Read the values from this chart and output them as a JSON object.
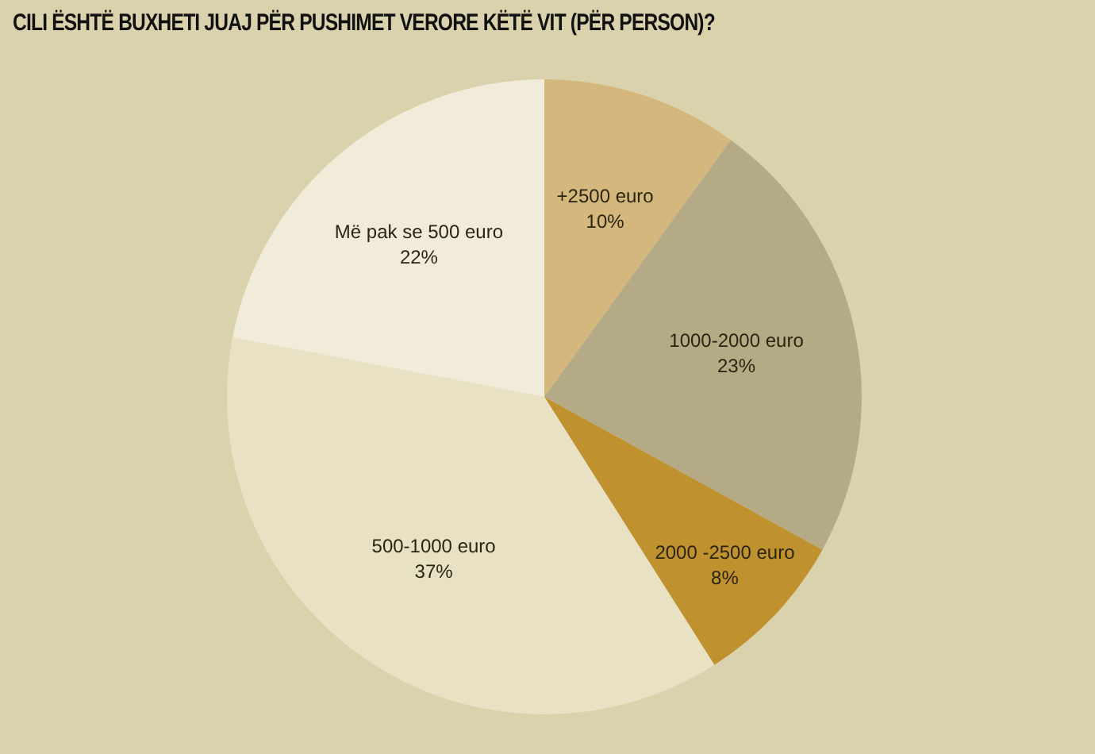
{
  "chart_data": {
    "type": "pie",
    "title": "CILI ËSHTË BUXHETI JUAJ PËR PUSHIMET VERORE KËTË VIT (PËR PERSON)?",
    "categories": [
      "+2500 euro",
      "1000-2000 euro",
      "2000 -2500 euro",
      "500-1000 euro",
      "Më pak se 500 euro"
    ],
    "values": [
      10,
      23,
      8,
      37,
      22
    ],
    "colors": [
      "#d3b77c",
      "#b5aa86",
      "#bf912f",
      "#e8e1c4",
      "#f1ecd9"
    ],
    "value_labels": [
      "10%",
      "23%",
      "8%",
      "37%",
      "22%"
    ],
    "legend": false
  }
}
